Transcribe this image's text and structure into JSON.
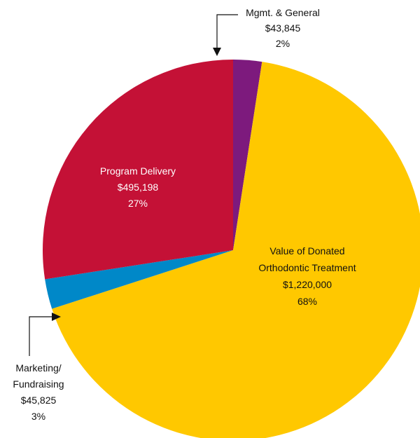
{
  "chart_data": {
    "type": "pie",
    "slices": [
      {
        "label_lines": [
          "Mgmt. & General"
        ],
        "value": 43845,
        "value_label": "$43,845",
        "percent_label": "2%",
        "color": "#7d1a7d"
      },
      {
        "label_lines": [
          "Value of Donated",
          "Orthodontic Treatment"
        ],
        "value": 1220000,
        "value_label": "$1,220,000",
        "percent_label": "68%",
        "color": "#ffc800"
      },
      {
        "label_lines": [
          "Marketing/",
          "Fundraising"
        ],
        "value": 45825,
        "value_label": "$45,825",
        "percent_label": "3%",
        "color": "#0088c8"
      },
      {
        "label_lines": [
          "Program Delivery"
        ],
        "value": 495198,
        "value_label": "$495,198",
        "percent_label": "27%",
        "color": "#c41136"
      }
    ]
  }
}
